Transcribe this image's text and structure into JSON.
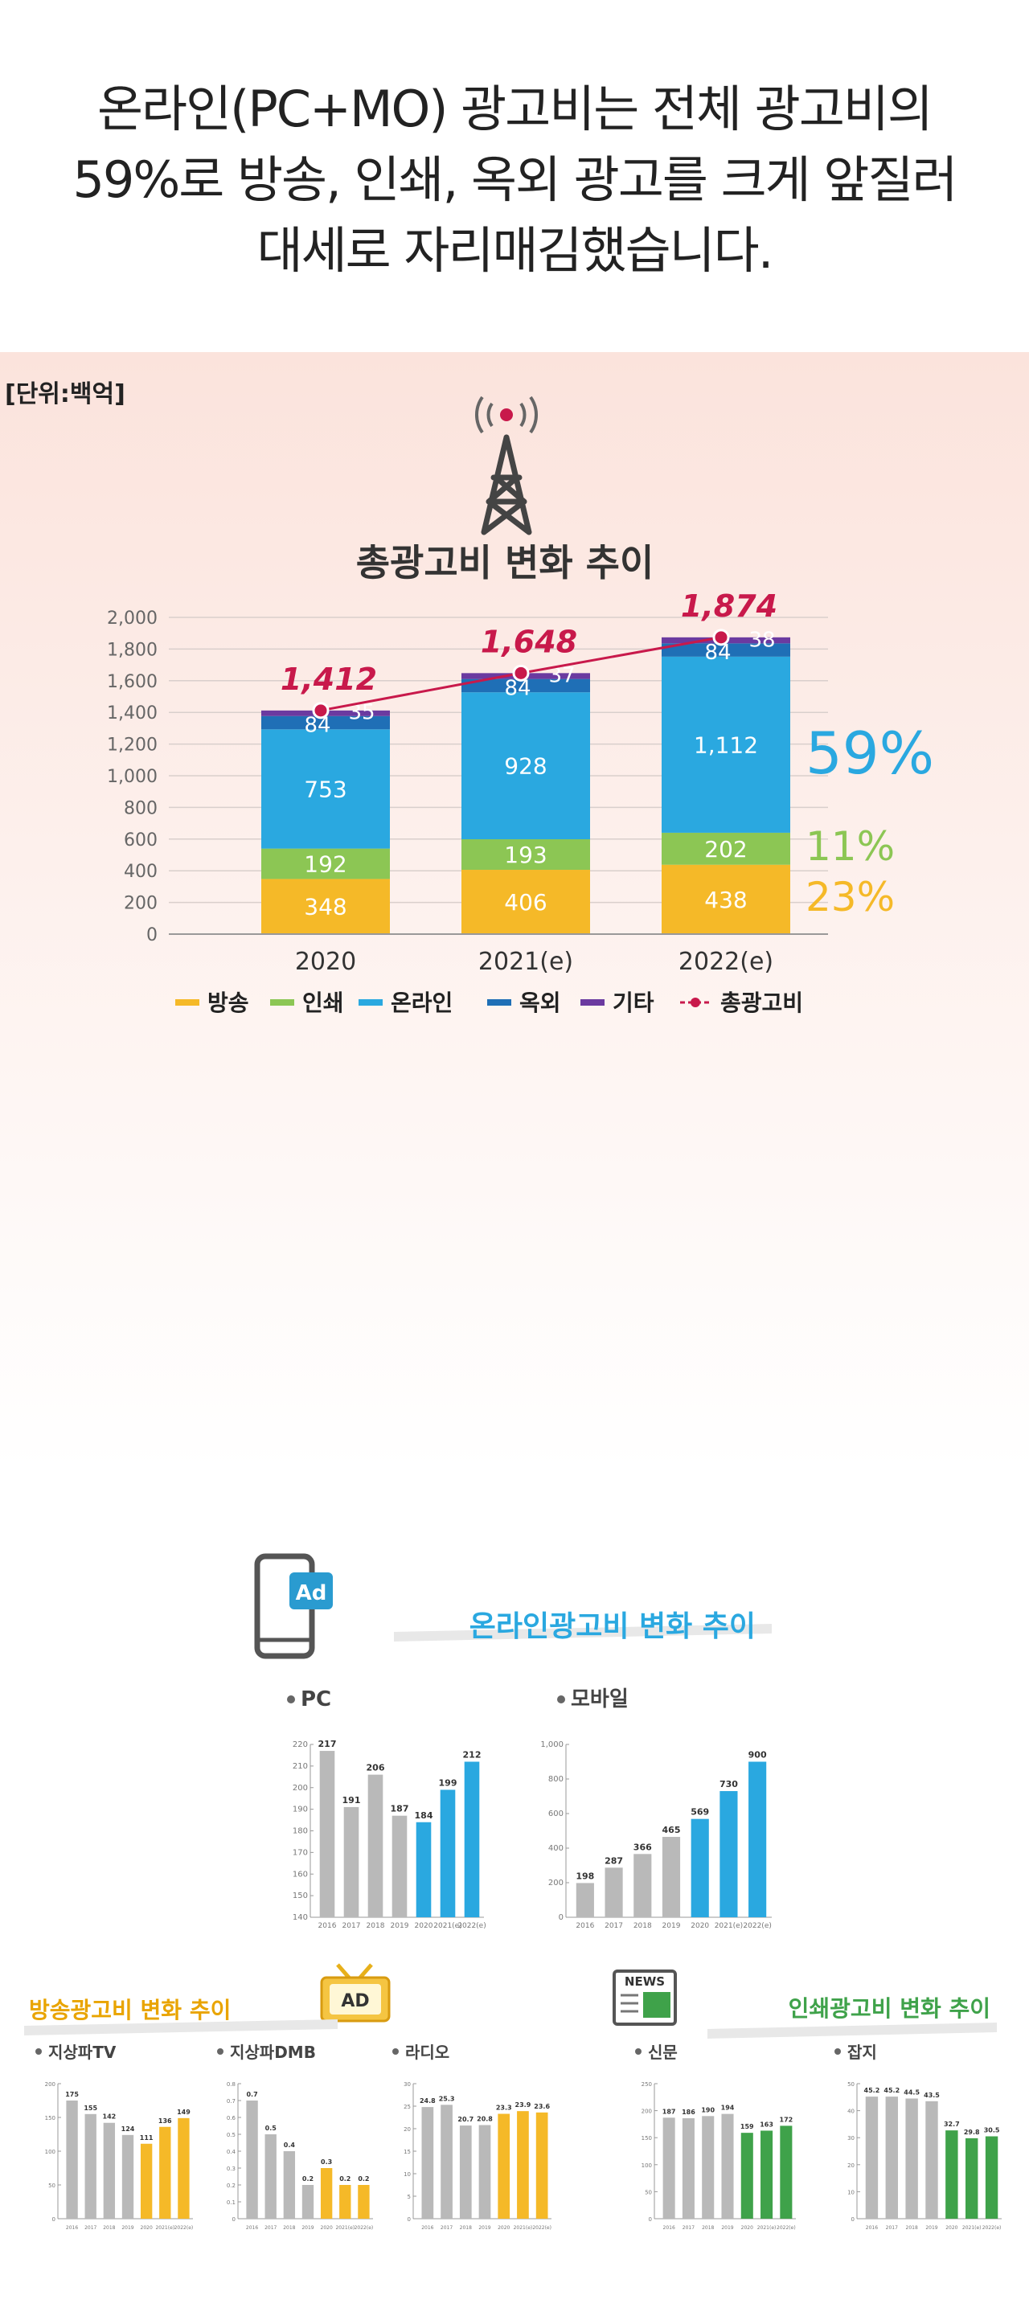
{
  "headline": [
    "온라인(PC+MO) 광고비는 전체 광고비의",
    "59%로 방송, 인쇄, 옥외 광고를 크게 앞질러",
    "대세로 자리매김했습니다."
  ],
  "unit_label": "[단위:백억]",
  "colors": {
    "broadcast": "#f5b928",
    "print": "#8cc654",
    "online": "#2aa8e0",
    "outdoor": "#1f6fb6",
    "other": "#6b3aa0",
    "total": "#c8194b",
    "gray": "#b9b9b9",
    "green": "#3fa24a"
  },
  "chart_data": [
    {
      "type": "bar",
      "title": "총광고비 변화 추이",
      "categories": [
        "2020",
        "2021(e)",
        "2022(e)"
      ],
      "ylim": [
        0,
        2000
      ],
      "yticks": [
        "0",
        "200",
        "400",
        "600",
        "800",
        "1,000",
        "1,200",
        "1,400",
        "1,600",
        "1,800",
        "2,000"
      ],
      "series": [
        {
          "name": "방송",
          "key": "broadcast",
          "values": [
            348,
            406,
            438
          ],
          "labels": [
            "348",
            "406",
            "438"
          ]
        },
        {
          "name": "인쇄",
          "key": "print",
          "values": [
            192,
            193,
            202
          ],
          "labels": [
            "192",
            "193",
            "202"
          ]
        },
        {
          "name": "온라인",
          "key": "online",
          "values": [
            753,
            928,
            1112
          ],
          "labels": [
            "753",
            "928",
            "1,112"
          ]
        },
        {
          "name": "옥외",
          "key": "outdoor",
          "values": [
            84,
            84,
            84
          ],
          "labels": [
            "84",
            "84",
            "84"
          ]
        },
        {
          "name": "기타",
          "key": "other",
          "values": [
            35,
            37,
            38
          ],
          "labels": [
            "35",
            "37",
            "38"
          ]
        }
      ],
      "total": {
        "name": "총광고비",
        "values": [
          1412,
          1648,
          1874
        ],
        "labels": [
          "1,412",
          "1,648",
          "1,874"
        ]
      },
      "shares": [
        {
          "label": "59%",
          "key": "online"
        },
        {
          "label": "11%",
          "key": "print"
        },
        {
          "label": "23%",
          "key": "broadcast"
        }
      ],
      "legend": [
        "방송",
        "인쇄",
        "온라인",
        "옥외",
        "기타",
        "총광고비"
      ]
    },
    {
      "type": "bar",
      "group": "온라인광고비 변화 추이",
      "title": "PC",
      "categories": [
        "2016",
        "2017",
        "2018",
        "2019",
        "2020",
        "2021(e)",
        "2022(e)"
      ],
      "values": [
        217,
        191,
        206,
        187,
        184,
        199,
        212
      ],
      "ylim": [
        140,
        220
      ],
      "yticks": [
        "140",
        "150",
        "160",
        "170",
        "180",
        "190",
        "200",
        "210",
        "220"
      ],
      "highlight_from": 4,
      "highlight": "online"
    },
    {
      "type": "bar",
      "group": "온라인광고비 변화 추이",
      "title": "모바일",
      "categories": [
        "2016",
        "2017",
        "2018",
        "2019",
        "2020",
        "2021(e)",
        "2022(e)"
      ],
      "values": [
        198,
        287,
        366,
        465,
        569,
        730,
        900
      ],
      "ylim": [
        0,
        1000
      ],
      "yticks": [
        "0",
        "200",
        "400",
        "600",
        "800",
        "1,000"
      ],
      "highlight_from": 4,
      "highlight": "online"
    },
    {
      "type": "bar",
      "group": "방송광고비 변화 추이",
      "title": "지상파TV",
      "categories": [
        "2016",
        "2017",
        "2018",
        "2019",
        "2020",
        "2021(e)",
        "2022(e)"
      ],
      "values": [
        175,
        155,
        142,
        124,
        111,
        136,
        149
      ],
      "ylim": [
        0,
        200
      ],
      "yticks": [
        "0",
        "50",
        "100",
        "150",
        "200"
      ],
      "highlight_from": 4,
      "highlight": "broadcast"
    },
    {
      "type": "bar",
      "group": "방송광고비 변화 추이",
      "title": "지상파DMB",
      "categories": [
        "2016",
        "2017",
        "2018",
        "2019",
        "2020",
        "2021(e)",
        "2022(e)"
      ],
      "values": [
        0.7,
        0.5,
        0.4,
        0.2,
        0.3,
        0.2,
        0.2
      ],
      "labels": [
        "0.7",
        "0.5",
        "0.4",
        "0.2",
        "0.3",
        "0.2",
        "0.2"
      ],
      "ylim": [
        0,
        0.8
      ],
      "yticks": [
        "0",
        "0.1",
        "0.2",
        "0.3",
        "0.4",
        "0.5",
        "0.6",
        "0.7",
        "0.8"
      ],
      "highlight_from": 4,
      "highlight": "broadcast"
    },
    {
      "type": "bar",
      "group": "방송광고비 변화 추이",
      "title": "라디오",
      "categories": [
        "2016",
        "2017",
        "2018",
        "2019",
        "2020",
        "2021(e)",
        "2022(e)"
      ],
      "values": [
        24.8,
        25.3,
        20.7,
        20.8,
        23.3,
        23.9,
        23.6
      ],
      "ylim": [
        0,
        30
      ],
      "yticks": [
        "0",
        "5",
        "10",
        "15",
        "20",
        "25",
        "30"
      ],
      "highlight_from": 4,
      "highlight": "broadcast"
    },
    {
      "type": "bar",
      "group": "인쇄광고비 변화 추이",
      "title": "신문",
      "categories": [
        "2016",
        "2017",
        "2018",
        "2019",
        "2020",
        "2021(e)",
        "2022(e)"
      ],
      "values": [
        187,
        186,
        190,
        194,
        159,
        163,
        172
      ],
      "ylim": [
        0,
        250
      ],
      "yticks": [
        "0",
        "50",
        "100",
        "150",
        "200",
        "250"
      ],
      "highlight_from": 4,
      "highlight": "green"
    },
    {
      "type": "bar",
      "group": "인쇄광고비 변화 추이",
      "title": "잡지",
      "categories": [
        "2016",
        "2017",
        "2018",
        "2019",
        "2020",
        "2021(e)",
        "2022(e)"
      ],
      "values": [
        45.2,
        45.2,
        44.5,
        43.5,
        32.7,
        29.8,
        30.5
      ],
      "ylim": [
        0,
        50
      ],
      "yticks": [
        "0",
        "10",
        "20",
        "30",
        "40",
        "50"
      ],
      "highlight_from": 4,
      "highlight": "green"
    }
  ],
  "sections": {
    "online": {
      "title": "온라인광고비 변화 추이",
      "icon": "phone-ad-icon",
      "icon_text": "Ad"
    },
    "broadcast": {
      "title": "방송광고비 변화 추이",
      "icon": "tv-ad-icon",
      "icon_text": "AD"
    },
    "print": {
      "title": "인쇄광고비 변화 추이",
      "icon": "newspaper-ad-icon",
      "icon_text": "NEWS"
    }
  }
}
